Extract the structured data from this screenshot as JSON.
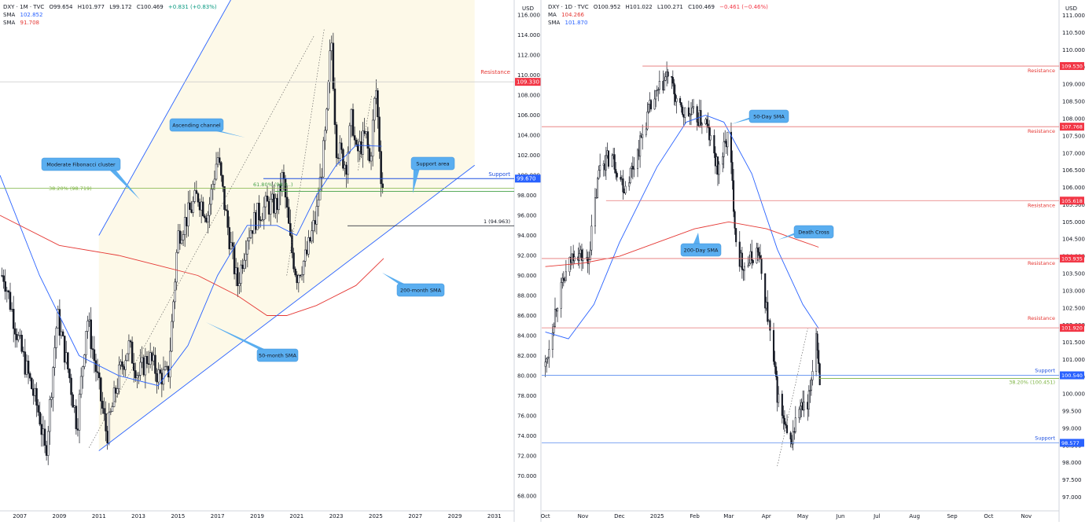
{
  "left": {
    "header": {
      "symbol": "DXY · 1M · TVC",
      "open": "O99.654",
      "high": "H101.977",
      "low": "L99.172",
      "close": "C100.469",
      "change": "+0.831 (+0.83%)",
      "sma1_label": "SMA",
      "sma1_value": "102.852",
      "sma2_label": "SMA",
      "sma2_value": "91.708"
    },
    "currency": "USD",
    "price_ticks": [
      "116.000",
      "114.000",
      "112.000",
      "110.000",
      "108.000",
      "106.000",
      "104.000",
      "102.000",
      "100.000",
      "98.000",
      "96.000",
      "94.000",
      "92.000",
      "90.000",
      "88.000",
      "86.000",
      "84.000",
      "82.000",
      "80.000",
      "78.000",
      "76.000",
      "74.000",
      "72.000",
      "70.000",
      "68.000"
    ],
    "time_ticks": [
      "2007",
      "2009",
      "2011",
      "2013",
      "2015",
      "2017",
      "2019",
      "2021",
      "2023",
      "2025",
      "2027",
      "2029",
      "2031"
    ],
    "levels": [
      {
        "label": "Resistance",
        "price": "109.330",
        "color": "#e53935"
      },
      {
        "label": "Support",
        "price": "99.670",
        "color": "#1e50e0"
      }
    ],
    "fib_labels": [
      "38.20% (98.719)",
      "61.80% (98.0..)",
      "1 (94.963)"
    ],
    "callouts": [
      "Ascending channel",
      "Moderate Fibonacci cluster",
      "Support area",
      "200-month SMA",
      "50-month SMA"
    ]
  },
  "right": {
    "header": {
      "symbol": "DXY · 1D · TVC",
      "open": "O100.952",
      "high": "H101.022",
      "low": "L100.271",
      "close": "C100.469",
      "change": "−0.461 (−0.46%)",
      "ma1_label": "MA",
      "ma1_value": "104.266",
      "ma2_label": "SMA",
      "ma2_value": "101.870"
    },
    "currency": "USD",
    "price_ticks": [
      "111.000",
      "110.500",
      "110.000",
      "109.500",
      "109.000",
      "108.500",
      "108.000",
      "107.500",
      "107.000",
      "106.500",
      "106.000",
      "105.500",
      "105.000",
      "104.500",
      "104.000",
      "103.500",
      "103.000",
      "102.500",
      "102.000",
      "101.500",
      "101.000",
      "100.500",
      "100.000",
      "99.500",
      "99.000",
      "98.500",
      "98.000",
      "97.500",
      "97.000"
    ],
    "time_ticks": [
      "Oct",
      "Nov",
      "Dec",
      "2025",
      "Feb",
      "Mar",
      "Apr",
      "May",
      "Jun",
      "Jul",
      "Aug",
      "Sep",
      "Oct",
      "Nov"
    ],
    "levels": [
      {
        "label": "Resistance",
        "price": "109.530",
        "color": "#e53935"
      },
      {
        "label": "Resistance",
        "price": "107.768",
        "color": "#e53935"
      },
      {
        "label": "Resistance",
        "price": "105.618",
        "color": "#e53935"
      },
      {
        "label": "Resistance",
        "price": "103.935",
        "color": "#e53935"
      },
      {
        "label": "Resistance",
        "price": "101.920",
        "color": "#e53935"
      },
      {
        "label": "Support",
        "price": "100.540",
        "color": "#1e50e0"
      },
      {
        "label": "Support",
        "price": "98.577",
        "color": "#1e50e0"
      }
    ],
    "fib_label": "38.20% (100.451)",
    "callouts": [
      "50-Day SMA",
      "200-Day SMA",
      "Death Cross"
    ]
  },
  "chart_data": [
    {
      "type": "candlestick",
      "symbol": "DXY",
      "timeframe": "1M",
      "x_range": [
        "2006",
        "2032"
      ],
      "ylim": [
        66.5,
        117.5
      ],
      "price_axis_label": "USD",
      "close_path": [
        [
          2006.2,
          90
        ],
        [
          2007.0,
          83
        ],
        [
          2008.0,
          76
        ],
        [
          2008.3,
          72
        ],
        [
          2008.9,
          86
        ],
        [
          2009.5,
          80
        ],
        [
          2009.9,
          75
        ],
        [
          2010.4,
          86
        ],
        [
          2010.9,
          80
        ],
        [
          2011.4,
          74
        ],
        [
          2012.0,
          80
        ],
        [
          2012.5,
          83
        ],
        [
          2013.0,
          80
        ],
        [
          2013.5,
          82
        ],
        [
          2014.0,
          80
        ],
        [
          2014.5,
          80
        ],
        [
          2015.0,
          94
        ],
        [
          2015.5,
          96
        ],
        [
          2016.0,
          98
        ],
        [
          2016.5,
          96
        ],
        [
          2017.0,
          102
        ],
        [
          2017.5,
          95
        ],
        [
          2018.0,
          89
        ],
        [
          2018.5,
          94
        ],
        [
          2019.0,
          96
        ],
        [
          2019.5,
          97
        ],
        [
          2020.0,
          97
        ],
        [
          2020.3,
          100
        ],
        [
          2020.7,
          93
        ],
        [
          2021.0,
          90
        ],
        [
          2021.5,
          92
        ],
        [
          2022.0,
          96
        ],
        [
          2022.5,
          105
        ],
        [
          2022.75,
          114
        ],
        [
          2023.0,
          103
        ],
        [
          2023.5,
          101
        ],
        [
          2023.8,
          106
        ],
        [
          2024.0,
          102
        ],
        [
          2024.5,
          104
        ],
        [
          2024.7,
          101
        ],
        [
          2025.0,
          109
        ],
        [
          2025.3,
          99
        ]
      ],
      "sma_50_month": [
        [
          2006,
          100
        ],
        [
          2008,
          90
        ],
        [
          2010,
          82
        ],
        [
          2012,
          80
        ],
        [
          2014,
          79
        ],
        [
          2015.5,
          83
        ],
        [
          2017,
          90
        ],
        [
          2018.5,
          95
        ],
        [
          2020,
          95
        ],
        [
          2021,
          94
        ],
        [
          2022,
          98
        ],
        [
          2023,
          101
        ],
        [
          2024,
          103
        ],
        [
          2025.3,
          102.9
        ]
      ],
      "sma_200_month": [
        [
          2006,
          96
        ],
        [
          2009,
          93
        ],
        [
          2012,
          92
        ],
        [
          2014,
          91
        ],
        [
          2016,
          90
        ],
        [
          2018,
          88
        ],
        [
          2019.5,
          86
        ],
        [
          2020.5,
          86
        ],
        [
          2022,
          87
        ],
        [
          2024,
          89
        ],
        [
          2025.4,
          91.7
        ]
      ],
      "levels": {
        "resistance": 109.33,
        "support": 99.67,
        "fib_38_2": 98.719,
        "fib_61_8": 98.0,
        "fib_1": 94.963
      },
      "last": {
        "open": 99.654,
        "high": 101.977,
        "low": 99.172,
        "close": 100.469
      }
    },
    {
      "type": "candlestick",
      "symbol": "DXY",
      "timeframe": "1D",
      "x_range": [
        "2024-09-28",
        "2025-11-28"
      ],
      "ylim": [
        96.6,
        111.45
      ],
      "price_axis_label": "USD",
      "close_path": [
        [
          "2024-10-01",
          100.8
        ],
        [
          "2024-10-10",
          102.6
        ],
        [
          "2024-10-25",
          104.2
        ],
        [
          "2024-11-05",
          103.8
        ],
        [
          "2024-11-15",
          106.7
        ],
        [
          "2024-11-25",
          106.9
        ],
        [
          "2024-12-05",
          106.0
        ],
        [
          "2024-12-15",
          106.9
        ],
        [
          "2024-12-25",
          108.2
        ],
        [
          "2025-01-10",
          109.3
        ],
        [
          "2025-01-20",
          108.2
        ],
        [
          "2025-01-30",
          108.1
        ],
        [
          "2025-02-10",
          107.9
        ],
        [
          "2025-02-20",
          106.5
        ],
        [
          "2025-03-01",
          107.6
        ],
        [
          "2025-03-08",
          104.0
        ],
        [
          "2025-03-15",
          103.7
        ],
        [
          "2025-03-25",
          104.2
        ],
        [
          "2025-04-03",
          102.0
        ],
        [
          "2025-04-10",
          100.0
        ],
        [
          "2025-04-20",
          98.4
        ],
        [
          "2025-04-28",
          99.6
        ],
        [
          "2025-05-05",
          99.5
        ],
        [
          "2025-05-12",
          101.8
        ],
        [
          "2025-05-15",
          100.47
        ]
      ],
      "sma_50_day": [
        [
          "2024-10-01",
          101.8
        ],
        [
          "2024-10-20",
          101.6
        ],
        [
          "2024-11-10",
          102.6
        ],
        [
          "2024-12-01",
          104.4
        ],
        [
          "2025-01-01",
          106.6
        ],
        [
          "2025-01-25",
          107.9
        ],
        [
          "2025-02-10",
          108.1
        ],
        [
          "2025-02-25",
          107.9
        ],
        [
          "2025-03-20",
          106.4
        ],
        [
          "2025-04-10",
          104.2
        ],
        [
          "2025-05-01",
          102.6
        ],
        [
          "2025-05-14",
          101.9
        ]
      ],
      "ma_200_day": [
        [
          "2024-10-01",
          103.7
        ],
        [
          "2024-11-01",
          103.8
        ],
        [
          "2024-12-01",
          104.0
        ],
        [
          "2025-01-01",
          104.4
        ],
        [
          "2025-02-01",
          104.8
        ],
        [
          "2025-03-01",
          105.0
        ],
        [
          "2025-04-01",
          104.8
        ],
        [
          "2025-05-14",
          104.266
        ]
      ],
      "levels": {
        "resistance": [
          109.53,
          107.768,
          105.618,
          103.935,
          101.92
        ],
        "support": [
          100.54,
          98.577
        ],
        "fib_38_2": 100.451
      },
      "last": {
        "open": 100.952,
        "high": 101.022,
        "low": 100.271,
        "close": 100.469
      }
    }
  ]
}
